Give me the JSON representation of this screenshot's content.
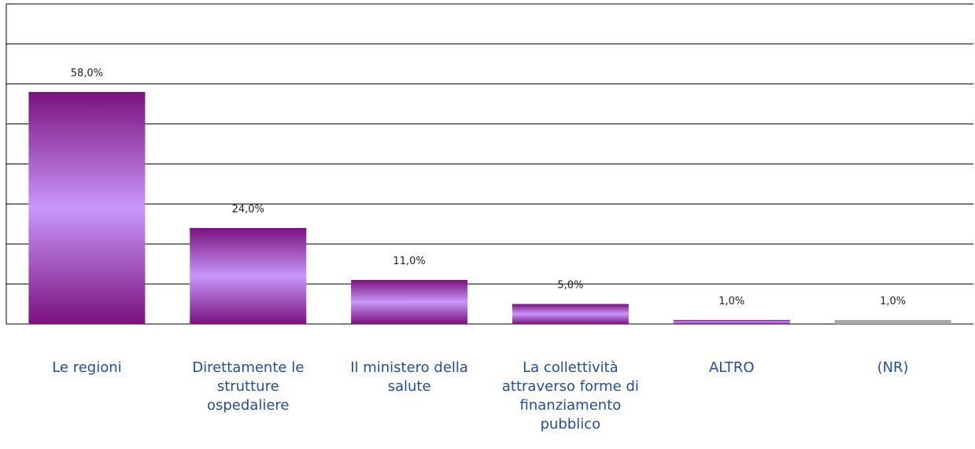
{
  "chart_data": {
    "type": "bar",
    "categories": [
      "Le regioni",
      "Direttamente le strutture ospedaliere",
      "Il ministero della salute",
      "La collettività attraverso forme di finanziamento pubblico",
      "ALTRO",
      "(NR)"
    ],
    "values": [
      58,
      24,
      11,
      5,
      1,
      1
    ],
    "value_labels": [
      "58,0%",
      "24,0%",
      "11,0%",
      "5,0%",
      "1,0%",
      "1,0%"
    ],
    "colors": [
      "#c996fb",
      "#c996fb",
      "#c996fb",
      "#c996fb",
      "#c996fb",
      "#a8a8a8"
    ],
    "edge_colors": [
      "#7a127e",
      "#7a127e",
      "#7a127e",
      "#7a127e",
      "#7a127e",
      "#a8a8a8"
    ],
    "ylim": [
      0,
      80
    ],
    "yticks": [
      0,
      10,
      20,
      30,
      40,
      50,
      60,
      70,
      80
    ],
    "grid": true
  }
}
